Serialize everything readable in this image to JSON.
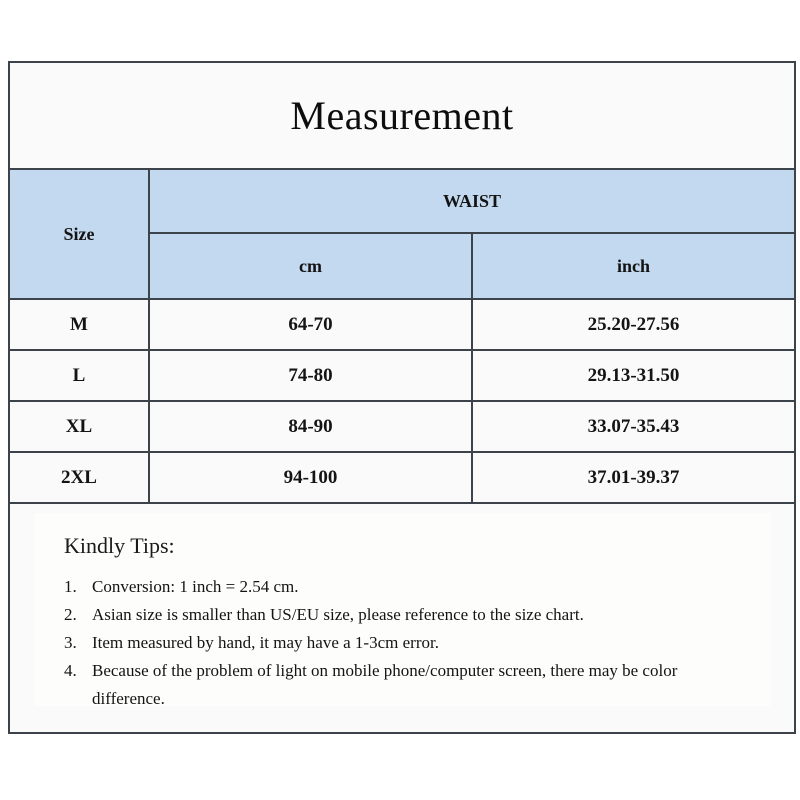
{
  "header": {
    "title": "Measurement"
  },
  "table": {
    "size_label": "Size",
    "group_label": "WAIST",
    "unit_cm_label": "cm",
    "unit_inch_label": "inch",
    "rows": [
      {
        "size": "M",
        "cm": "64-70",
        "inch": "25.20-27.56"
      },
      {
        "size": "L",
        "cm": "74-80",
        "inch": "29.13-31.50"
      },
      {
        "size": "XL",
        "cm": "84-90",
        "inch": "33.07-35.43"
      },
      {
        "size": "2XL",
        "cm": "94-100",
        "inch": "37.01-39.37"
      }
    ]
  },
  "tips": {
    "heading": "Kindly Tips:",
    "items": [
      {
        "number": "1.",
        "text": "Conversion: 1 inch = 2.54 cm."
      },
      {
        "number": "2.",
        "text": "Asian size is smaller than US/EU size, please reference to the size chart."
      },
      {
        "number": "3.",
        "text": "Item measured by hand, it may have a 1-3cm error."
      },
      {
        "number": "4.",
        "text": "Because of the problem of light on mobile phone/computer screen, there may be color difference."
      }
    ]
  },
  "colors": {
    "header_blue": "#C3D9EF",
    "border_dark": "#3D434B",
    "panel_background": "#F9FAF9",
    "text": "#141414"
  }
}
